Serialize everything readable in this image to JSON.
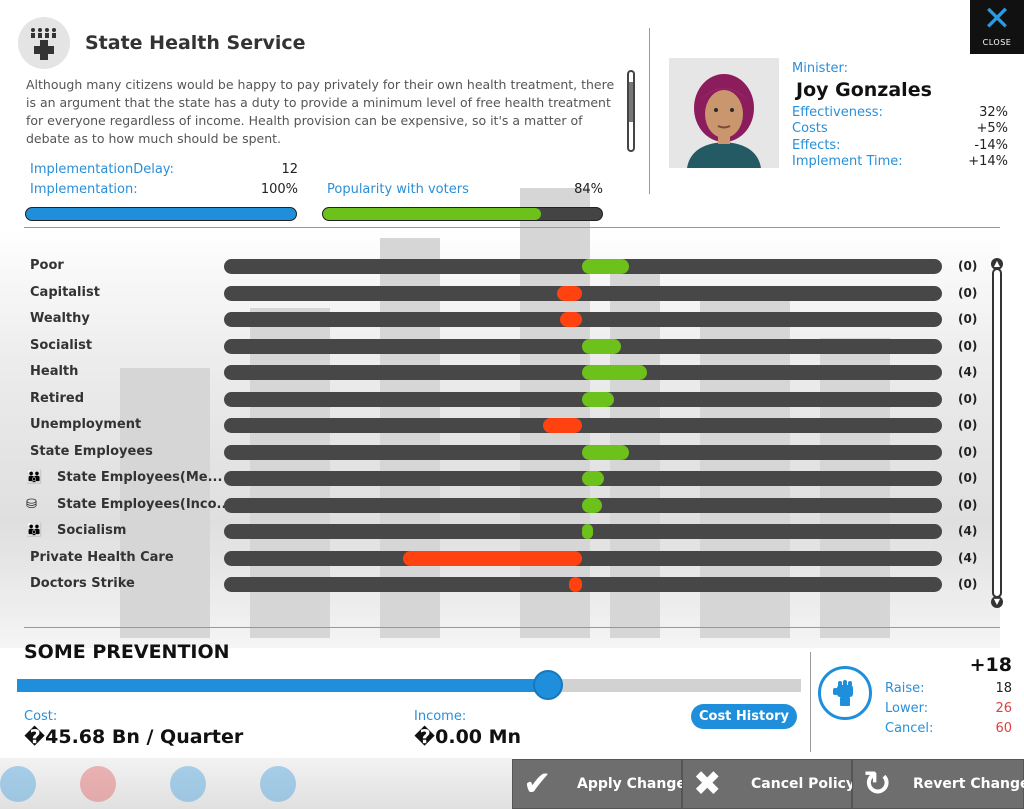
{
  "window": {
    "title": "State Health Service",
    "close_label": "CLOSE",
    "description": "Although many citizens would be happy to pay privately for their own health treatment, there is an argument that the state has a duty to provide a minimum level of free health treatment for everyone regardless of income. Health provision can be expensive, so it's a matter of debate as to how much should be spent."
  },
  "stats": {
    "implementation_delay_label": "ImplementationDelay:",
    "implementation_delay_value": "12",
    "implementation_label": "Implementation:",
    "implementation_value": "100%",
    "implementation_fraction": 1.0,
    "popularity_label": "Popularity with voters",
    "popularity_value": "84%",
    "popularity_fraction": 0.84
  },
  "minister": {
    "label": "Minister:",
    "name": "Joy Gonzales",
    "effectiveness_label": "Effectiveness:",
    "effectiveness_value": "32%",
    "costs_label": "Costs",
    "costs_value": "+5%",
    "effects_label": "Effects:",
    "effects_value": "-14%",
    "implement_time_label": "Implement Time:",
    "implement_time_value": "+14%"
  },
  "groups": [
    {
      "name": "Poor",
      "icon": "",
      "effect": 0.13,
      "value": "(0)"
    },
    {
      "name": "Capitalist",
      "icon": "",
      "effect": -0.07,
      "value": "(0)"
    },
    {
      "name": "Wealthy",
      "icon": "",
      "effect": -0.06,
      "value": "(0)"
    },
    {
      "name": "Socialist",
      "icon": "",
      "effect": 0.11,
      "value": "(0)"
    },
    {
      "name": "Health",
      "icon": "",
      "effect": 0.18,
      "value": "(4)"
    },
    {
      "name": "Retired",
      "icon": "",
      "effect": 0.09,
      "value": "(0)"
    },
    {
      "name": "Unemployment",
      "icon": "",
      "effect": -0.11,
      "value": "(0)"
    },
    {
      "name": "State Employees",
      "icon": "",
      "effect": 0.13,
      "value": "(0)"
    },
    {
      "name": "State Employees(Me...",
      "icon": "people-icon",
      "effect": 0.06,
      "value": "(0)"
    },
    {
      "name": "State Employees(Inco...",
      "icon": "coins-icon",
      "effect": 0.055,
      "value": "(0)"
    },
    {
      "name": "Socialism",
      "icon": "people-icon",
      "effect": 0.03,
      "value": "(4)"
    },
    {
      "name": "Private Health Care",
      "icon": "",
      "effect": -0.5,
      "value": "(4)"
    },
    {
      "name": "Doctors Strike",
      "icon": "",
      "effect": -0.035,
      "value": "(0)"
    }
  ],
  "setting": {
    "label": "SOME PREVENTION",
    "level": 0.677,
    "cost_label": "Cost:",
    "cost_value": "�45.68 Bn / Quarter",
    "income_label": "Income:",
    "income_value": "�0.00 Mn",
    "cost_history_label": "Cost History"
  },
  "votes": {
    "delta": "+18",
    "raise_label": "Raise:",
    "raise_value": "18",
    "lower_label": "Lower:",
    "lower_value": "26",
    "cancel_label": "Cancel:",
    "cancel_value": "60"
  },
  "actions": {
    "apply_label": "Apply Changes",
    "cancel_label": "Cancel Policy",
    "revert_label": "Revert Changes"
  },
  "colors": {
    "accent": "#1f8fdc",
    "positive": "#6cc11a",
    "negative": "#ff4210",
    "bar_bg": "#474747",
    "red_text": "#e04040"
  }
}
